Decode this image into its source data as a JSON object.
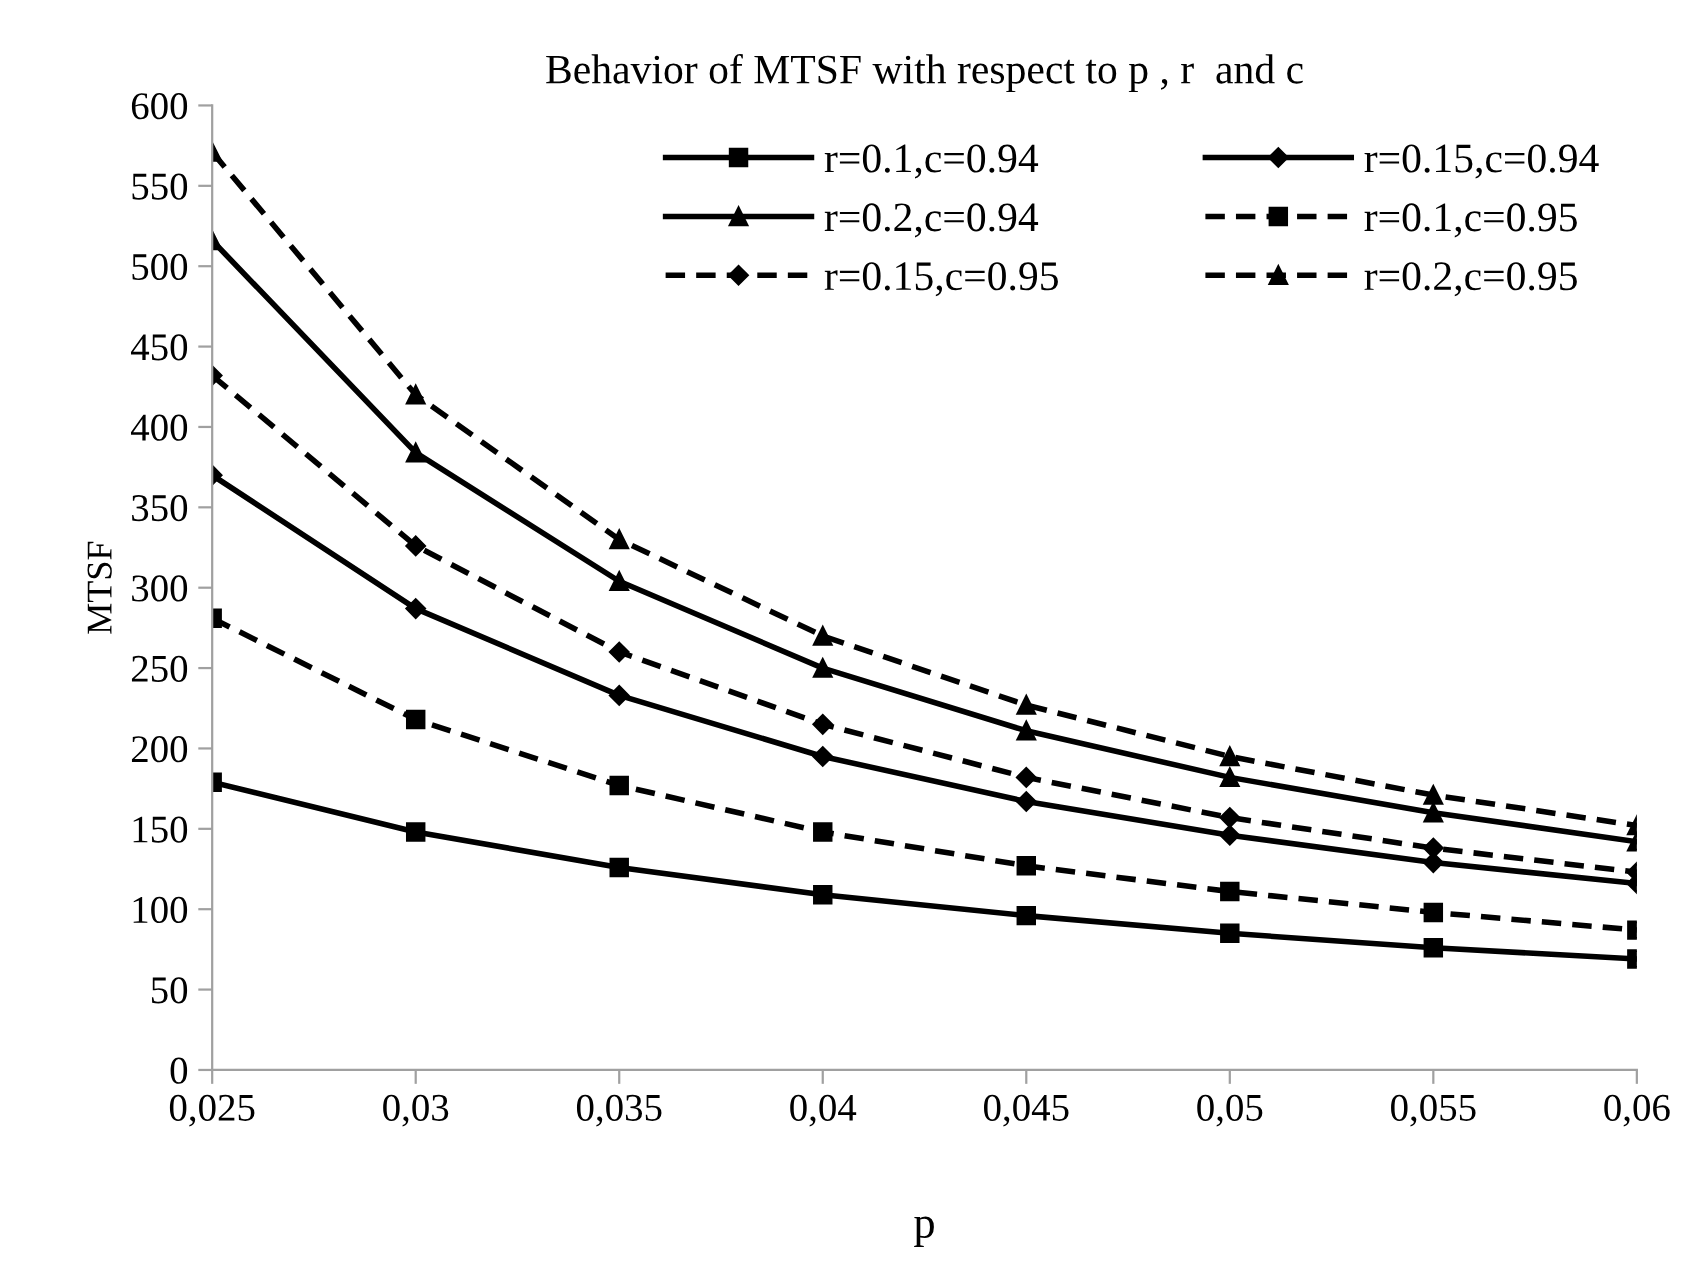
{
  "chart_data": {
    "type": "line",
    "title": "Behavior of MTSF with respect to p , r  and c",
    "xlabel": "p",
    "ylabel": "MTSF",
    "categories": [
      "0,025",
      "0,03",
      "0,035",
      "0,04",
      "0,045",
      "0,05",
      "0,055",
      "0,06"
    ],
    "series": [
      {
        "name": "r=0.1,c=0.94",
        "color": "#000000",
        "marker": "square",
        "line_style": "solid",
        "values": [
          179,
          148,
          126,
          109,
          96,
          85,
          76,
          69
        ]
      },
      {
        "name": "r=0.15,c=0.94",
        "color": "#000000",
        "marker": "diamond",
        "line_style": "solid",
        "values": [
          370,
          287,
          233,
          195,
          167,
          146,
          129,
          116
        ]
      },
      {
        "name": "r=0.2,c=0.94",
        "color": "#000000",
        "marker": "triangle",
        "line_style": "solid",
        "values": [
          516,
          384,
          304,
          250,
          211,
          182,
          160,
          142
        ]
      },
      {
        "name": "r=0.1,c=0.95",
        "color": "#000000",
        "marker": "square",
        "line_style": "dashed",
        "values": [
          281,
          218,
          177,
          148,
          127,
          111,
          98,
          87
        ]
      },
      {
        "name": "r=0.15,c=0.95",
        "color": "#000000",
        "marker": "diamond",
        "line_style": "dashed",
        "values": [
          432,
          326,
          260,
          215,
          182,
          157,
          138,
          123
        ]
      },
      {
        "name": "r=0.2,c=0.95",
        "color": "#000000",
        "marker": "triangle",
        "line_style": "dashed",
        "values": [
          571,
          420,
          330,
          270,
          227,
          195,
          171,
          152
        ]
      }
    ],
    "ylim": [
      0,
      600
    ],
    "yticks": [
      0,
      50,
      100,
      150,
      200,
      250,
      300,
      350,
      400,
      450,
      500,
      550,
      600
    ],
    "grid": false,
    "legend": "top right"
  }
}
